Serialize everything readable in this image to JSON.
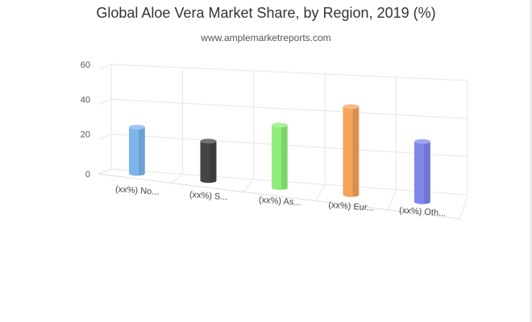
{
  "title": "Global Aloe Vera Market Share, by Region, 2019 (%)",
  "subtitle": "www.amplemarketreports.com",
  "chart_data": {
    "type": "bar",
    "style": "3d-cylinder",
    "categories": [
      "(xx%) No...",
      "(xx%) S...",
      "(xx%) As...",
      "(xx%) Eur...",
      "(xx%) Oth..."
    ],
    "series": [
      {
        "values": [
          20,
          17,
          27,
          38,
          26
        ]
      }
    ],
    "colors": [
      "#7cb5ec",
      "#434348",
      "#90ed7d",
      "#f7a35c",
      "#8085e9"
    ],
    "ylim": [
      0,
      60
    ],
    "yticks": [
      0,
      20,
      40,
      60
    ],
    "grid": true,
    "legend": "none",
    "xlabel": "",
    "ylabel": ""
  }
}
